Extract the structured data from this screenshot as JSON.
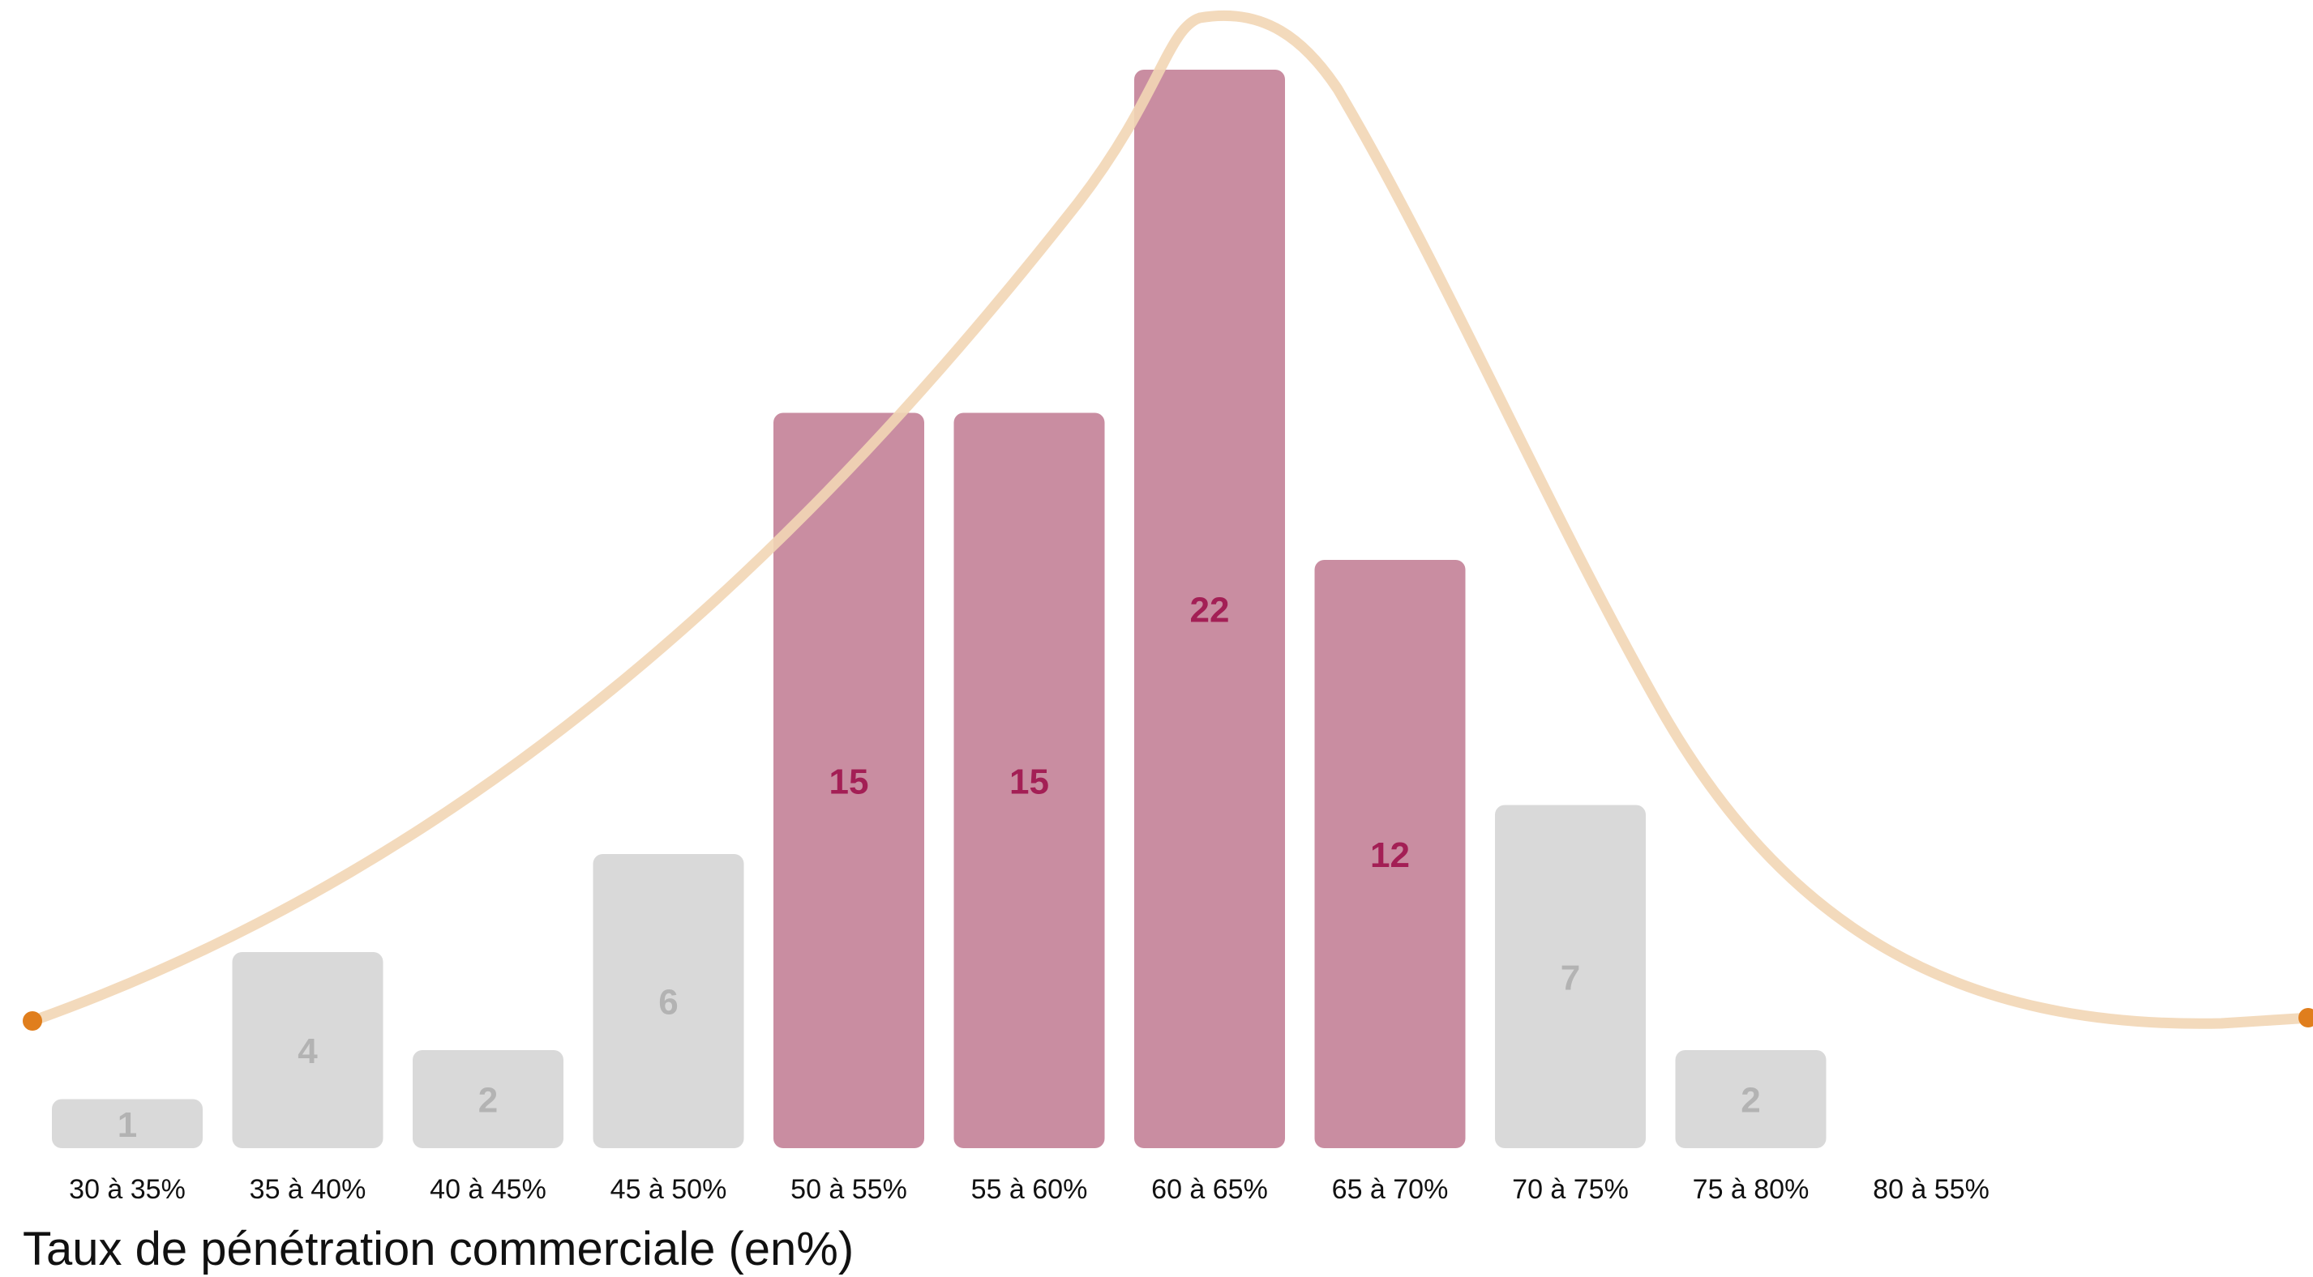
{
  "chart_data": {
    "type": "bar",
    "title": "",
    "xlabel": "Taux de pénétration commerciale (en%)",
    "ylabel": "",
    "ylim": [
      0,
      22
    ],
    "grid": false,
    "legend": "none",
    "categories": [
      "30 à 35%",
      "35 à 40%",
      "40 à 45%",
      "45 à 50%",
      "50 à 55%",
      "55 à 60%",
      "60 à 65%",
      "65 à 70%",
      "70 à 75%",
      "75 à 80%",
      "80 à 55%"
    ],
    "values": [
      1,
      4,
      2,
      6,
      15,
      15,
      22,
      12,
      7,
      2,
      0
    ],
    "highlighted": [
      false,
      false,
      false,
      false,
      true,
      true,
      true,
      true,
      false,
      false,
      false
    ],
    "data_labels": [
      "1",
      "4",
      "2",
      "6",
      "15",
      "15",
      "22",
      "12",
      "7",
      "2",
      ""
    ],
    "overlay_curve": {
      "type": "normal-distribution",
      "note": "smooth bell curve overlay with endpoint markers"
    },
    "colors": {
      "bar_default": "#d9d9d9",
      "bar_highlight": "#c98da1",
      "label_default": "#b3b3b3",
      "label_highlight": "#a31f55",
      "curve": "#f2d6b5",
      "curve_endpoint": "#e07e1d",
      "tick_label": "#111111"
    }
  }
}
